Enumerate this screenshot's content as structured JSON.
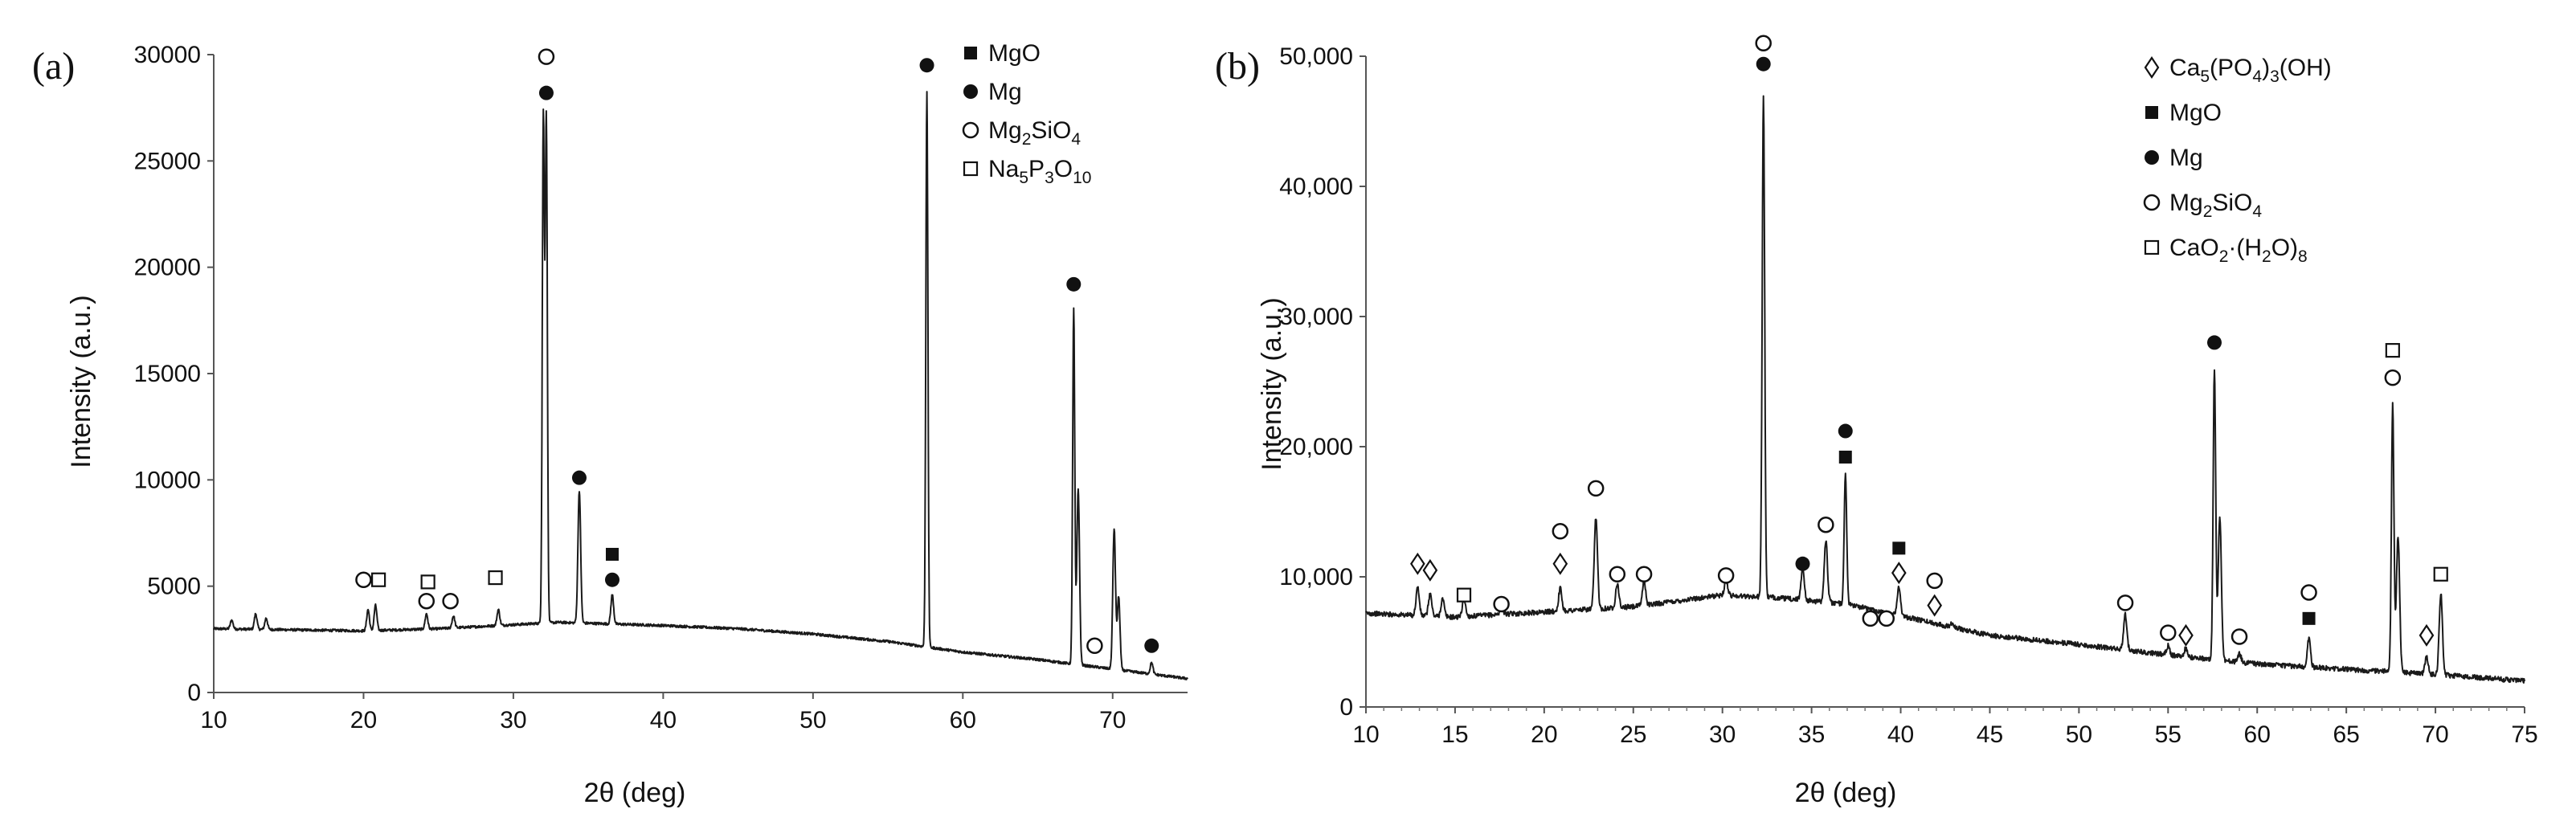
{
  "chart_data": [
    {
      "type": "line",
      "panel_label": "(a)",
      "xlabel": "2θ (deg)",
      "ylabel": "Intensity (a.u.)",
      "xlim": [
        10,
        75
      ],
      "ylim": [
        0,
        30000
      ],
      "xticks": [
        10,
        20,
        30,
        40,
        50,
        60,
        70
      ],
      "xtick_labels": [
        "10",
        "20",
        "30",
        "40",
        "50",
        "60",
        "70"
      ],
      "yticks": [
        0,
        5000,
        10000,
        15000,
        20000,
        25000,
        30000
      ],
      "ytick_labels": [
        "0",
        "5000",
        "10000",
        "15000",
        "20000",
        "25000",
        "30000"
      ],
      "legend": [
        {
          "marker": "filled-square",
          "text": "MgO"
        },
        {
          "marker": "filled-circle",
          "text": "Mg"
        },
        {
          "marker": "open-circle",
          "text": "Mg",
          "sub": "2",
          "text2": "SiO",
          "sub2": "4"
        },
        {
          "marker": "open-square",
          "text": "Na",
          "sub": "5",
          "text2": "P",
          "sub2": "3",
          "text3": "O",
          "sub3": "10"
        }
      ],
      "baseline": [
        [
          10,
          3000
        ],
        [
          15,
          2950
        ],
        [
          20,
          2900
        ],
        [
          25,
          3000
        ],
        [
          29,
          3150
        ],
        [
          33,
          3300
        ],
        [
          40,
          3150
        ],
        [
          45,
          3000
        ],
        [
          50,
          2750
        ],
        [
          55,
          2400
        ],
        [
          60,
          1900
        ],
        [
          65,
          1550
        ],
        [
          70,
          1100
        ],
        [
          75,
          650
        ]
      ],
      "peaks": [
        {
          "x": 11.2,
          "y": 3400
        },
        {
          "x": 12.8,
          "y": 3700
        },
        {
          "x": 13.5,
          "y": 3500
        },
        {
          "x": 20.3,
          "y": 3900
        },
        {
          "x": 20.8,
          "y": 4100
        },
        {
          "x": 24.2,
          "y": 3700
        },
        {
          "x": 26.0,
          "y": 3600
        },
        {
          "x": 29.0,
          "y": 3900
        },
        {
          "x": 32.0,
          "y": 27000
        },
        {
          "x": 32.2,
          "y": 27000
        },
        {
          "x": 34.4,
          "y": 9500
        },
        {
          "x": 36.6,
          "y": 4600
        },
        {
          "x": 57.6,
          "y": 28300
        },
        {
          "x": 67.4,
          "y": 18000
        },
        {
          "x": 67.7,
          "y": 9600
        },
        {
          "x": 70.1,
          "y": 7700
        },
        {
          "x": 70.4,
          "y": 4500
        },
        {
          "x": 72.6,
          "y": 1400
        }
      ],
      "markers": [
        {
          "x": 32.2,
          "y": 29900,
          "type": "open-circle"
        },
        {
          "x": 32.2,
          "y": 28200,
          "type": "filled-circle"
        },
        {
          "x": 34.4,
          "y": 10100,
          "type": "filled-circle"
        },
        {
          "x": 36.6,
          "y": 6500,
          "type": "filled-square"
        },
        {
          "x": 36.6,
          "y": 5300,
          "type": "filled-circle"
        },
        {
          "x": 57.6,
          "y": 29500,
          "type": "filled-circle"
        },
        {
          "x": 67.4,
          "y": 19200,
          "type": "filled-circle"
        },
        {
          "x": 20.0,
          "y": 5300,
          "type": "open-circle"
        },
        {
          "x": 21.0,
          "y": 5300,
          "type": "open-square"
        },
        {
          "x": 24.2,
          "y": 4300,
          "type": "open-circle"
        },
        {
          "x": 24.3,
          "y": 5200,
          "type": "open-square"
        },
        {
          "x": 25.8,
          "y": 4300,
          "type": "open-circle"
        },
        {
          "x": 28.8,
          "y": 5400,
          "type": "open-square"
        },
        {
          "x": 68.8,
          "y": 2200,
          "type": "open-circle"
        },
        {
          "x": 72.6,
          "y": 2200,
          "type": "filled-circle"
        }
      ]
    },
    {
      "type": "line",
      "panel_label": "(b)",
      "xlabel": "2θ (deg)",
      "ylabel": "Intensity (a.u.)",
      "xlim": [
        10,
        75
      ],
      "ylim": [
        0,
        50000
      ],
      "xticks": [
        10,
        15,
        20,
        25,
        30,
        35,
        40,
        45,
        50,
        55,
        60,
        65,
        70,
        75
      ],
      "xtick_labels": [
        "10",
        "15",
        "20",
        "25",
        "30",
        "35",
        "40",
        "45",
        "50",
        "55",
        "60",
        "65",
        "70",
        "75"
      ],
      "yticks": [
        0,
        10000,
        20000,
        30000,
        40000,
        50000
      ],
      "ytick_labels": [
        "0",
        "10,000",
        "20,000",
        "30,000",
        "40,000",
        "50,000"
      ],
      "legend": [
        {
          "marker": "open-diamond",
          "text": "Ca",
          "sub": "5",
          "text2": "(PO",
          "sub2": "4",
          "text3": ")",
          "sub3": "3",
          "text4": "(OH)"
        },
        {
          "marker": "filled-square",
          "text": "MgO"
        },
        {
          "marker": "filled-circle",
          "text": "Mg"
        },
        {
          "marker": "open-circle",
          "text": "Mg",
          "sub": "2",
          "text2": "SiO",
          "sub2": "4"
        },
        {
          "marker": "open-square",
          "text": "CaO",
          "sub": "2",
          "text2": "·(H",
          "sub2": "2",
          "text3": "O)",
          "sub3": "8"
        }
      ],
      "baseline": [
        [
          10,
          7200
        ],
        [
          15,
          6900
        ],
        [
          20,
          7300
        ],
        [
          25,
          7700
        ],
        [
          30,
          8600
        ],
        [
          33,
          8400
        ],
        [
          37,
          7900
        ],
        [
          40,
          7000
        ],
        [
          45,
          5500
        ],
        [
          50,
          4800
        ],
        [
          55,
          4000
        ],
        [
          60,
          3300
        ],
        [
          65,
          2900
        ],
        [
          70,
          2500
        ],
        [
          75,
          2000
        ]
      ],
      "peaks": [
        {
          "x": 12.9,
          "y": 9200
        },
        {
          "x": 13.6,
          "y": 8700
        },
        {
          "x": 14.3,
          "y": 8300
        },
        {
          "x": 15.5,
          "y": 8300
        },
        {
          "x": 17.6,
          "y": 7700
        },
        {
          "x": 20.9,
          "y": 9100
        },
        {
          "x": 22.9,
          "y": 14500
        },
        {
          "x": 24.1,
          "y": 9500
        },
        {
          "x": 25.6,
          "y": 9700
        },
        {
          "x": 30.2,
          "y": 9700
        },
        {
          "x": 32.3,
          "y": 47000
        },
        {
          "x": 34.5,
          "y": 10700
        },
        {
          "x": 35.8,
          "y": 12800
        },
        {
          "x": 36.9,
          "y": 18000
        },
        {
          "x": 38.3,
          "y": 7200
        },
        {
          "x": 39.2,
          "y": 7200
        },
        {
          "x": 39.9,
          "y": 9300
        },
        {
          "x": 41.9,
          "y": 6300
        },
        {
          "x": 42.9,
          "y": 6500
        },
        {
          "x": 52.6,
          "y": 7100
        },
        {
          "x": 55.0,
          "y": 4700
        },
        {
          "x": 56.0,
          "y": 4500
        },
        {
          "x": 57.6,
          "y": 26000
        },
        {
          "x": 57.9,
          "y": 14500
        },
        {
          "x": 59.0,
          "y": 4100
        },
        {
          "x": 62.9,
          "y": 5300
        },
        {
          "x": 67.6,
          "y": 23200
        },
        {
          "x": 67.9,
          "y": 13200
        },
        {
          "x": 69.5,
          "y": 3800
        },
        {
          "x": 70.3,
          "y": 8700
        }
      ],
      "markers": [
        {
          "x": 32.3,
          "y": 51000,
          "type": "open-circle"
        },
        {
          "x": 32.3,
          "y": 49400,
          "type": "filled-circle"
        },
        {
          "x": 12.9,
          "y": 11000,
          "type": "open-diamond"
        },
        {
          "x": 13.6,
          "y": 10500,
          "type": "open-diamond"
        },
        {
          "x": 15.5,
          "y": 8600,
          "type": "open-square"
        },
        {
          "x": 17.6,
          "y": 7900,
          "type": "open-circle"
        },
        {
          "x": 20.9,
          "y": 13500,
          "type": "open-circle"
        },
        {
          "x": 20.9,
          "y": 11000,
          "type": "open-diamond"
        },
        {
          "x": 22.9,
          "y": 16800,
          "type": "open-circle"
        },
        {
          "x": 24.1,
          "y": 10200,
          "type": "open-circle"
        },
        {
          "x": 25.6,
          "y": 10200,
          "type": "open-circle"
        },
        {
          "x": 30.2,
          "y": 10100,
          "type": "open-circle"
        },
        {
          "x": 34.5,
          "y": 11000,
          "type": "filled-circle"
        },
        {
          "x": 35.8,
          "y": 14000,
          "type": "open-circle"
        },
        {
          "x": 36.9,
          "y": 21200,
          "type": "filled-circle"
        },
        {
          "x": 36.9,
          "y": 19200,
          "type": "filled-square"
        },
        {
          "x": 38.3,
          "y": 6800,
          "type": "open-circle"
        },
        {
          "x": 39.2,
          "y": 6800,
          "type": "open-circle"
        },
        {
          "x": 39.9,
          "y": 12200,
          "type": "filled-square"
        },
        {
          "x": 39.9,
          "y": 10300,
          "type": "open-diamond"
        },
        {
          "x": 41.9,
          "y": 9700,
          "type": "open-circle"
        },
        {
          "x": 41.9,
          "y": 7800,
          "type": "open-diamond"
        },
        {
          "x": 52.6,
          "y": 8000,
          "type": "open-circle"
        },
        {
          "x": 55.0,
          "y": 5700,
          "type": "open-circle"
        },
        {
          "x": 56.0,
          "y": 5500,
          "type": "open-diamond"
        },
        {
          "x": 57.6,
          "y": 28000,
          "type": "filled-circle"
        },
        {
          "x": 59.0,
          "y": 5400,
          "type": "open-circle"
        },
        {
          "x": 62.9,
          "y": 8800,
          "type": "open-circle"
        },
        {
          "x": 62.9,
          "y": 6800,
          "type": "filled-square"
        },
        {
          "x": 67.6,
          "y": 27400,
          "type": "open-square"
        },
        {
          "x": 67.6,
          "y": 25300,
          "type": "open-circle"
        },
        {
          "x": 69.5,
          "y": 5500,
          "type": "open-diamond"
        },
        {
          "x": 70.3,
          "y": 10200,
          "type": "open-square"
        }
      ]
    }
  ]
}
